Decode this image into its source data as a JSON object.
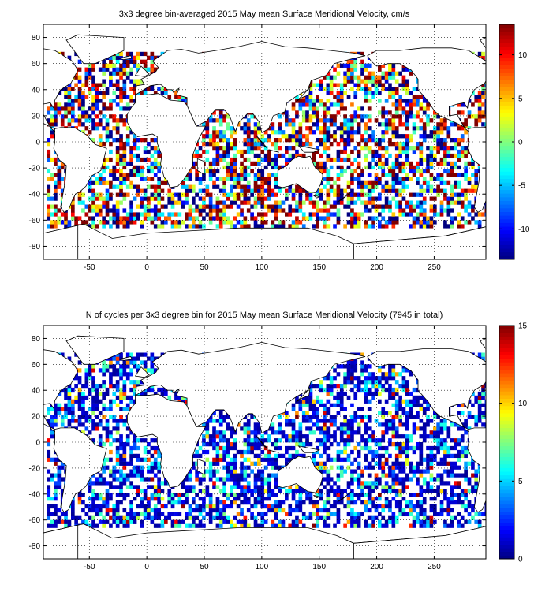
{
  "panels": [
    {
      "title": "3x3 degree bin-averaged 2015 May mean Surface Meridional Velocity, cm/s",
      "colorbar": {
        "min": -13.5,
        "max": 13.5,
        "ticks": [
          -10,
          -5,
          0,
          5,
          10
        ],
        "tick_labels": [
          "-10",
          "-5",
          "0",
          "5",
          "10"
        ]
      }
    },
    {
      "title": "N of cycles per 3x3 degree bin for 2015 May mean Surface Meridional Velocity (7945 in total)",
      "colorbar": {
        "min": 0,
        "max": 15,
        "ticks": [
          0,
          5,
          10,
          15
        ],
        "tick_labels": [
          "0",
          "5",
          "10",
          "15"
        ]
      }
    }
  ],
  "map_axes": {
    "x_range": [
      -90,
      295
    ],
    "y_range": [
      -90,
      90
    ],
    "x_ticks": [
      -50,
      0,
      50,
      100,
      150,
      200,
      250
    ],
    "x_tick_labels": [
      "-50",
      "0",
      "50",
      "100",
      "150",
      "200",
      "250"
    ],
    "y_ticks": [
      -80,
      -60,
      -40,
      -20,
      0,
      20,
      40,
      60,
      80
    ],
    "y_tick_labels": [
      "-80",
      "-60",
      "-40",
      "-20",
      "0",
      "20",
      "40",
      "60",
      "80"
    ],
    "grid": "dotted"
  },
  "colormap": "jet",
  "colors": {
    "land_fill": "#ffffff",
    "coast": "#000000",
    "frame": "#000000"
  }
}
